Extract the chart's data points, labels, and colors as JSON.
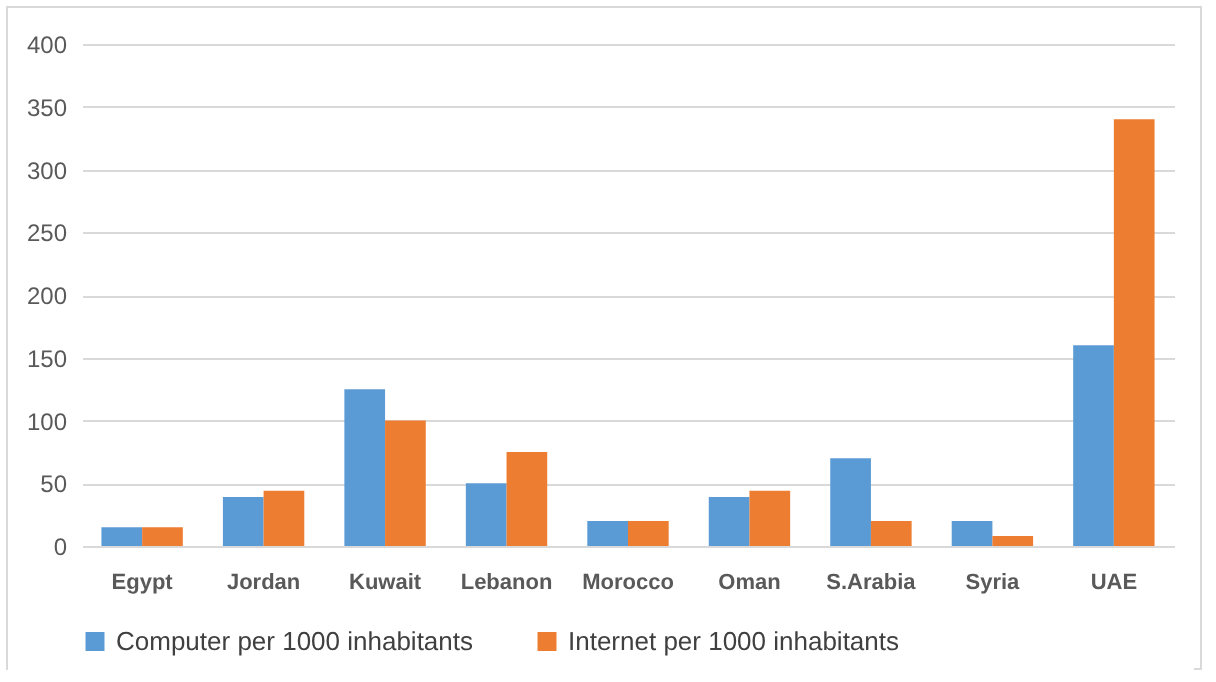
{
  "chart_data": {
    "type": "bar",
    "categories": [
      "Egypt",
      "Jordan",
      "Kuwait",
      "Lebanon",
      "Morocco",
      "Oman",
      "S.Arabia",
      "Syria",
      "UAE"
    ],
    "series": [
      {
        "name": "Computer per 1000 inhabitants",
        "color": "#5b9bd5",
        "values": [
          15,
          39,
          125,
          50,
          20,
          39,
          70,
          20,
          160
        ]
      },
      {
        "name": "Internet per 1000 inhabitants",
        "color": "#ed7d31",
        "values": [
          15,
          44,
          100,
          75,
          20,
          44,
          20,
          8,
          340
        ]
      }
    ],
    "ylim": [
      0,
      400
    ],
    "yticks": [
      0,
      50,
      100,
      150,
      200,
      250,
      300,
      350,
      400
    ],
    "grid": "y",
    "legend": "bottom"
  }
}
